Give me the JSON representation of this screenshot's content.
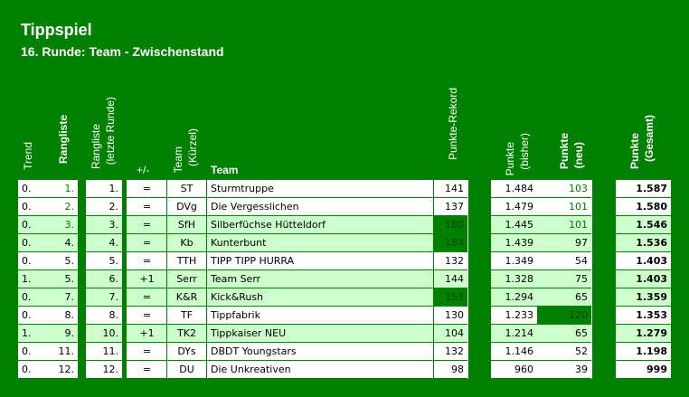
{
  "title": "Tippspiel",
  "subtitle": "16. Runde: Team - Zwischenstand",
  "headers": {
    "trend": "Trend",
    "rangliste": "Rangliste",
    "rangliste_letzte_1": "Rangliste",
    "rangliste_letzte_2": "(letzte Runde)",
    "plusminus": "+/-",
    "team_kuerzel_1": "Team",
    "team_kuerzel_2": "(Kürzel)",
    "team": "Team",
    "punkte_rekord": "Punkte-Rekord",
    "punkte_bisher_1": "Punkte",
    "punkte_bisher_2": "(bisher)",
    "punkte_neu_1": "Punkte",
    "punkte_neu_2": "(neu)",
    "punkte_gesamt_1": "Punkte",
    "punkte_gesamt_2": "(Gesamt)"
  },
  "colors": {
    "banner": "#008000",
    "row_light": "#ffffff",
    "row_alt": "#ccffcc",
    "highlight": "#008000"
  },
  "rows": [
    {
      "trend": "0.",
      "rank": "1.",
      "last": "1.",
      "pm": "=",
      "short": "ST",
      "team": "Sturmtruppe",
      "record": "141",
      "prev": "1.484",
      "new": "103",
      "total": "1.587",
      "alt": false,
      "hl_rank": true,
      "hl_record": false,
      "hl_new": true
    },
    {
      "trend": "0.",
      "rank": "2.",
      "last": "2.",
      "pm": "=",
      "short": "DVg",
      "team": "Die Vergesslichen",
      "record": "137",
      "prev": "1.479",
      "new": "101",
      "total": "1.580",
      "alt": false,
      "hl_rank": true,
      "hl_record": false,
      "hl_new": true
    },
    {
      "trend": "0.",
      "rank": "3.",
      "last": "3.",
      "pm": "=",
      "short": "SfH",
      "team": "Silberfüchse Hütteldorf",
      "record": "180",
      "prev": "1.445",
      "new": "101",
      "total": "1.546",
      "alt": true,
      "hl_rank": true,
      "hl_record": true,
      "hl_new": true
    },
    {
      "trend": "0.",
      "rank": "4.",
      "last": "4.",
      "pm": "=",
      "short": "Kb",
      "team": "Kunterbunt",
      "record": "184",
      "prev": "1.439",
      "new": "97",
      "total": "1.536",
      "alt": true,
      "hl_rank": false,
      "hl_record": true,
      "hl_new": false
    },
    {
      "trend": "0.",
      "rank": "5.",
      "last": "5.",
      "pm": "=",
      "short": "TTH",
      "team": "TIPP TIPP HURRA",
      "record": "132",
      "prev": "1.349",
      "new": "54",
      "total": "1.403",
      "alt": false,
      "hl_rank": false,
      "hl_record": false,
      "hl_new": false
    },
    {
      "trend": "1.",
      "rank": "5.",
      "last": "6.",
      "pm": "+1",
      "short": "Serr",
      "team": "Team Serr",
      "record": "144",
      "prev": "1.328",
      "new": "75",
      "total": "1.403",
      "alt": true,
      "hl_rank": false,
      "hl_record": false,
      "hl_new": false
    },
    {
      "trend": "0.",
      "rank": "7.",
      "last": "7.",
      "pm": "=",
      "short": "K&R",
      "team": "Kick&Rush",
      "record": "153",
      "prev": "1.294",
      "new": "65",
      "total": "1.359",
      "alt": true,
      "hl_rank": false,
      "hl_record": true,
      "hl_new": false
    },
    {
      "trend": "0.",
      "rank": "8.",
      "last": "8.",
      "pm": "=",
      "short": "TF",
      "team": "Tippfabrik",
      "record": "130",
      "prev": "1.233",
      "new": "120",
      "total": "1.353",
      "alt": false,
      "hl_rank": false,
      "hl_record": false,
      "hl_new": true
    },
    {
      "trend": "1.",
      "rank": "9.",
      "last": "10.",
      "pm": "+1",
      "short": "TK2",
      "team": "Tippkaiser NEU",
      "record": "104",
      "prev": "1.214",
      "new": "65",
      "total": "1.279",
      "alt": true,
      "hl_rank": false,
      "hl_record": false,
      "hl_new": false
    },
    {
      "trend": "0.",
      "rank": "11.",
      "last": "11.",
      "pm": "=",
      "short": "DYs",
      "team": "DBDT Youngstars",
      "record": "132",
      "prev": "1.146",
      "new": "52",
      "total": "1.198",
      "alt": false,
      "hl_rank": false,
      "hl_record": false,
      "hl_new": false
    },
    {
      "trend": "0.",
      "rank": "12.",
      "last": "12.",
      "pm": "=",
      "short": "DU",
      "team": "Die Unkreativen",
      "record": "98",
      "prev": "960",
      "new": "39",
      "total": "999",
      "alt": false,
      "hl_rank": false,
      "hl_record": false,
      "hl_new": false
    }
  ]
}
